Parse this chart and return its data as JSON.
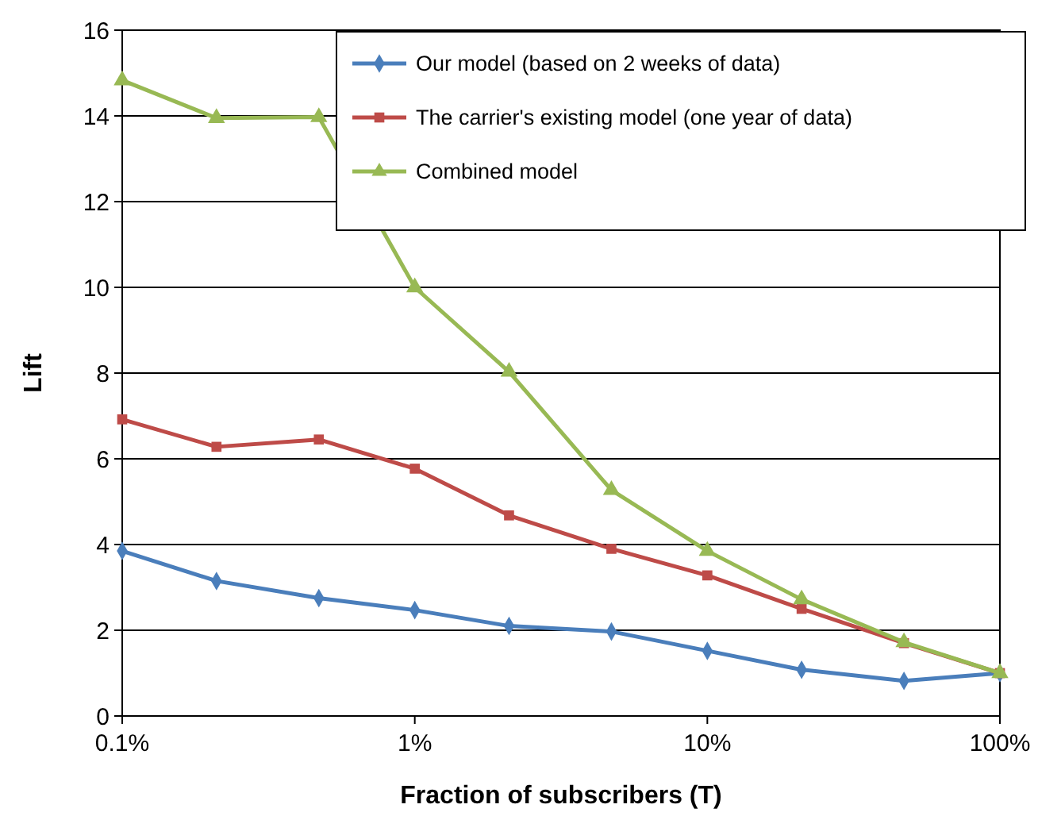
{
  "chart_data": {
    "type": "line",
    "xlabel": "Fraction of subscribers (T)",
    "ylabel": "Lift",
    "log": "x",
    "grid": "y",
    "legend": "top right",
    "x": [
      0.1,
      0.21,
      0.47,
      1,
      2.1,
      4.7,
      10,
      21,
      47,
      100
    ],
    "xlim": [
      0.1,
      100
    ],
    "xticks": [
      {
        "value": 0.1,
        "label": "0.1%"
      },
      {
        "value": 1,
        "label": "1%"
      },
      {
        "value": 10,
        "label": "10%"
      },
      {
        "value": 100,
        "label": "100%"
      }
    ],
    "ylim": [
      0,
      16
    ],
    "yticks": [
      0,
      2,
      4,
      6,
      8,
      10,
      12,
      14,
      16
    ],
    "series": [
      {
        "name": "Our model (based on 2 weeks of data)",
        "color": "#4a7ebb",
        "marker": "diamond",
        "values": [
          3.85,
          3.15,
          2.75,
          2.47,
          2.1,
          1.97,
          1.52,
          1.08,
          0.82,
          1.0
        ]
      },
      {
        "name": "The carrier's existing model (one year of data)",
        "color": "#be4b48",
        "marker": "square",
        "values": [
          6.92,
          6.28,
          6.45,
          5.77,
          4.68,
          3.9,
          3.28,
          2.5,
          1.7,
          1.0
        ]
      },
      {
        "name": "Combined model",
        "color": "#98b954",
        "marker": "triangle",
        "values": [
          14.83,
          13.95,
          13.97,
          10.0,
          8.03,
          5.27,
          3.85,
          2.72,
          1.72,
          1.0
        ]
      }
    ]
  }
}
